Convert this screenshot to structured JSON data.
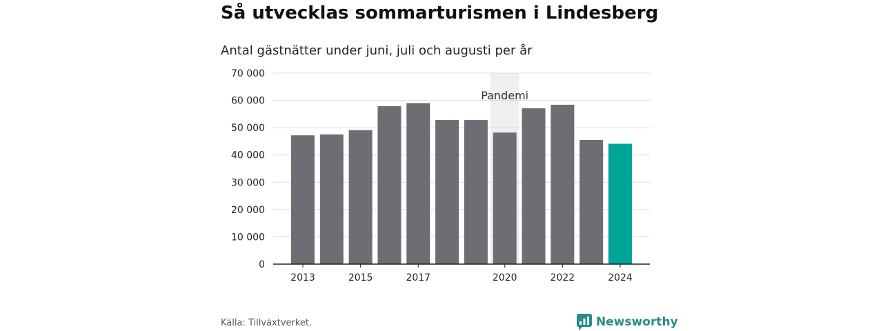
{
  "chart_data": {
    "type": "bar",
    "title": "Så utvecklas sommarturismen i Lindesberg",
    "subtitle": "Antal gästnätter under juni, juli och augusti per år",
    "categories": [
      "2013",
      "2014",
      "2015",
      "2016",
      "2017",
      "2018",
      "2019",
      "2020",
      "2021",
      "2022",
      "2023",
      "2024"
    ],
    "tick_labels": [
      "2013",
      "",
      "2015",
      "",
      "2017",
      "",
      "",
      "2020",
      "",
      "2022",
      "",
      "2024"
    ],
    "values": [
      47200,
      47500,
      49100,
      57900,
      59000,
      52800,
      52800,
      48200,
      57100,
      58400,
      45500,
      44100
    ],
    "bar_colors": [
      "#6e6d73",
      "#6e6d73",
      "#6e6d73",
      "#6e6d73",
      "#6e6d73",
      "#6e6d73",
      "#6e6d73",
      "#6e6d73",
      "#6e6d73",
      "#6e6d73",
      "#6e6d73",
      "#00a398"
    ],
    "ylim": [
      0,
      70000
    ],
    "yticks": [
      0,
      10000,
      20000,
      30000,
      40000,
      50000,
      60000,
      70000
    ],
    "ytick_labels": [
      "0",
      "10 000",
      "20 000",
      "30 000",
      "40 000",
      "50 000",
      "60 000",
      "70 000"
    ],
    "grid": true,
    "xlabel": "",
    "ylabel": "",
    "annotation": {
      "label": "Pandemi",
      "from_category": "2020",
      "to_category": "2021",
      "color": "#efefef"
    }
  },
  "footer": {
    "source": "Källa: Tillväxtverket.",
    "brand": "Newsworthy",
    "brand_icon": "newsworthy-logo-icon",
    "brand_color": "#2a8b88"
  }
}
